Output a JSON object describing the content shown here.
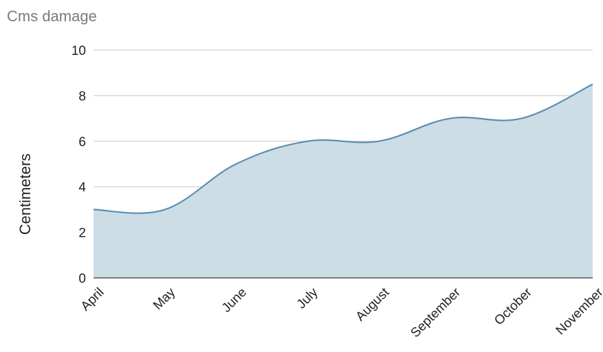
{
  "chart_data": {
    "type": "area",
    "title": "Cms damage",
    "xlabel": "",
    "ylabel": "Centimeters",
    "categories": [
      "April",
      "May",
      "June",
      "July",
      "August",
      "September",
      "October",
      "November"
    ],
    "series": [
      {
        "values": [
          3,
          3,
          5,
          6,
          6,
          7,
          7,
          8.5
        ]
      }
    ],
    "ylim": [
      0,
      10
    ],
    "yticks": [
      "0",
      "2",
      "4",
      "6",
      "8",
      "10"
    ],
    "grid": true,
    "legend": "none",
    "smooth": true,
    "colors": {
      "line": "#5b8db0",
      "fill": "#ccdde6",
      "title": "#7a7a7a"
    }
  }
}
